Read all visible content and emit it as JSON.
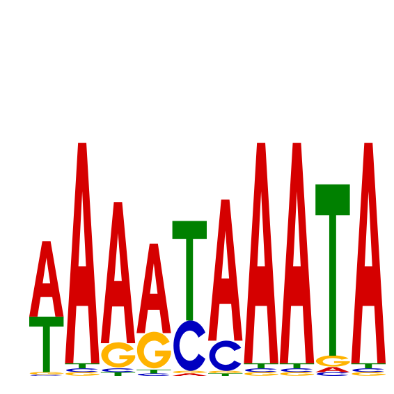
{
  "colors": {
    "A": "#d50000",
    "C": "#0000c0",
    "G": "#ffb300",
    "T": "#008000"
  },
  "chart_data": {
    "type": "sequence-logo",
    "alphabet": [
      "A",
      "C",
      "G",
      "T"
    ],
    "ylim": [
      0,
      2
    ],
    "positions": [
      {
        "A": 0.6,
        "T": 0.44,
        "G": 0.02,
        "C": 0.01
      },
      {
        "A": 1.75,
        "T": 0.04,
        "G": 0.03,
        "C": 0.03
      },
      {
        "A": 1.12,
        "G": 0.2,
        "T": 0.03,
        "C": 0.03
      },
      {
        "A": 0.71,
        "G": 0.29,
        "T": 0.03,
        "C": 0.02
      },
      {
        "T": 0.79,
        "C": 0.4,
        "A": 0.02,
        "G": 0.02
      },
      {
        "A": 1.12,
        "C": 0.24,
        "T": 0.02,
        "G": 0.02
      },
      {
        "A": 1.75,
        "T": 0.04,
        "G": 0.03,
        "C": 0.03
      },
      {
        "A": 1.75,
        "T": 0.04,
        "G": 0.03,
        "C": 0.03
      },
      {
        "T": 1.36,
        "G": 0.09,
        "A": 0.04,
        "C": 0.03
      },
      {
        "A": 1.75,
        "T": 0.04,
        "G": 0.03,
        "C": 0.03
      }
    ]
  }
}
